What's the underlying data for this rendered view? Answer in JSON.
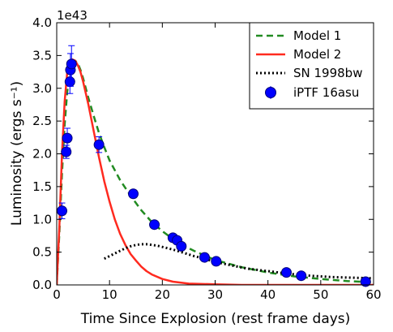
{
  "chart_data": {
    "type": "line",
    "xlabel": "Time Since Explosion (rest frame days)",
    "ylabel": "Luminosity (ergs s⁻¹)",
    "y_offset_label": "1e43",
    "xlim": [
      0,
      60
    ],
    "ylim": [
      0,
      4.0
    ],
    "x_ticks": [
      "0",
      "10",
      "20",
      "30",
      "40",
      "50",
      "60"
    ],
    "y_ticks": [
      "0.0",
      "0.5",
      "1.0",
      "1.5",
      "2.0",
      "2.5",
      "3.0",
      "3.5",
      "4.0"
    ],
    "y_tick_values": [
      0,
      0.5,
      1.0,
      1.5,
      2.0,
      2.5,
      3.0,
      3.5,
      4.0
    ],
    "x_tick_values": [
      0,
      10,
      20,
      30,
      40,
      50,
      60
    ],
    "grid": false,
    "legend_position": "top-right",
    "series": [
      {
        "name": "Model 1",
        "style": "dashed",
        "color": "#228B22",
        "x": [
          0,
          0.5,
          1.0,
          1.5,
          2.0,
          2.5,
          3.0,
          3.5,
          4.0,
          4.5,
          5,
          6,
          7,
          8,
          9,
          10,
          12,
          14,
          16,
          18,
          20,
          22,
          24,
          26,
          28,
          30,
          35,
          40,
          45,
          50,
          55,
          60
        ],
        "y": [
          0.0,
          0.8,
          1.7,
          2.45,
          2.95,
          3.25,
          3.38,
          3.42,
          3.38,
          3.28,
          3.15,
          2.85,
          2.58,
          2.32,
          2.1,
          1.9,
          1.6,
          1.36,
          1.14,
          0.96,
          0.82,
          0.7,
          0.6,
          0.52,
          0.45,
          0.38,
          0.27,
          0.19,
          0.13,
          0.09,
          0.06,
          0.04
        ]
      },
      {
        "name": "Model 2",
        "style": "solid",
        "color": "#ff2a1f",
        "x": [
          0,
          0.5,
          1.0,
          1.5,
          2.0,
          2.5,
          3.0,
          3.5,
          4.0,
          4.5,
          5,
          6,
          7,
          8,
          9,
          10,
          11,
          12,
          13,
          14,
          15,
          16,
          17,
          18,
          20,
          22,
          25,
          30,
          35,
          40,
          50,
          60
        ],
        "y": [
          0.0,
          0.9,
          2.0,
          2.8,
          3.25,
          3.4,
          3.44,
          3.42,
          3.35,
          3.25,
          3.1,
          2.75,
          2.35,
          1.95,
          1.58,
          1.27,
          1.0,
          0.78,
          0.61,
          0.47,
          0.37,
          0.28,
          0.21,
          0.16,
          0.09,
          0.05,
          0.02,
          0.01,
          0.0,
          0.0,
          0.0,
          0.0
        ]
      },
      {
        "name": "SN 1998bw",
        "style": "dotted",
        "color": "#000000",
        "x": [
          9,
          10,
          11,
          12,
          13,
          14,
          15,
          16,
          17,
          18,
          19,
          20,
          22,
          24,
          26,
          28,
          30,
          33,
          36,
          40,
          44,
          48,
          52,
          56,
          60
        ],
        "y": [
          0.4,
          0.44,
          0.48,
          0.52,
          0.56,
          0.59,
          0.61,
          0.62,
          0.62,
          0.61,
          0.6,
          0.58,
          0.54,
          0.49,
          0.44,
          0.4,
          0.35,
          0.3,
          0.25,
          0.21,
          0.17,
          0.14,
          0.12,
          0.11,
          0.1
        ]
      }
    ],
    "errorbar_series": {
      "name": "iPTF 16asu",
      "color": "#0000ff",
      "x": [
        1.0,
        1.8,
        2.0,
        2.5,
        2.6,
        2.8,
        8.0,
        14.5,
        18.5,
        22.0,
        22.8,
        23.6,
        28.0,
        30.2,
        43.5,
        46.3,
        58.5
      ],
      "y": [
        1.13,
        2.03,
        2.24,
        3.1,
        3.28,
        3.37,
        2.14,
        1.39,
        0.92,
        0.72,
        0.68,
        0.59,
        0.42,
        0.36,
        0.19,
        0.14,
        0.05
      ],
      "yerr": [
        0.12,
        0.1,
        0.15,
        0.18,
        0.25,
        0.28,
        0.12,
        0.06,
        0.05,
        0.04,
        0.04,
        0.04,
        0.04,
        0.04,
        0.03,
        0.03,
        0.03
      ]
    }
  }
}
